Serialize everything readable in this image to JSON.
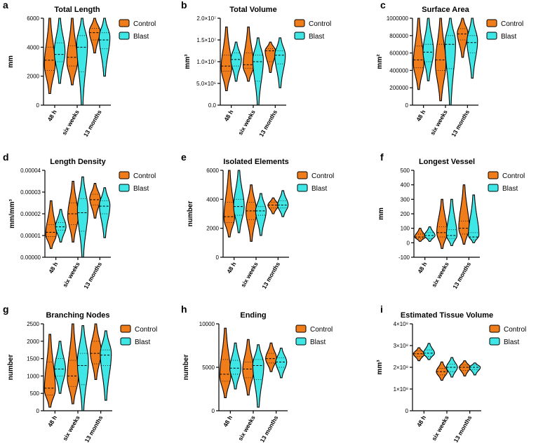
{
  "colors": {
    "control": "#f07d1a",
    "blast": "#3ee6e6",
    "outline": "#000000"
  },
  "legend": [
    "Control",
    "Blast"
  ],
  "categories": [
    "48 h",
    "six weeks",
    "13 months"
  ],
  "chart_data": [
    {
      "type": "violin",
      "letter": "a",
      "title": "Total Length",
      "ylabel": "mm",
      "ylim": [
        0,
        6000
      ],
      "ticks": [
        0,
        2000,
        4000,
        6000
      ],
      "tick_labels": [
        "0",
        "2000",
        "4000",
        "6000"
      ],
      "series": [
        {
          "name": "Control",
          "violins": [
            {
              "min": 800,
              "max": 6000,
              "median": 3100,
              "q1": 2400,
              "q3": 4000,
              "mode": 2800
            },
            {
              "min": 1400,
              "max": 6000,
              "median": 3300,
              "q1": 2700,
              "q3": 4100,
              "mode": 3000
            },
            {
              "min": 3600,
              "max": 6000,
              "median": 5000,
              "q1": 4500,
              "q3": 5300,
              "mode": 5100
            }
          ]
        },
        {
          "name": "Blast",
          "violins": [
            {
              "min": 1500,
              "max": 6000,
              "median": 3500,
              "q1": 3000,
              "q3": 4300,
              "mode": 3700
            },
            {
              "min": 0,
              "max": 6000,
              "median": 4000,
              "q1": 2300,
              "q3": 4800,
              "mode": 4300
            },
            {
              "min": 2000,
              "max": 6000,
              "median": 4500,
              "q1": 3900,
              "q3": 5000,
              "mode": 4700
            }
          ]
        }
      ]
    },
    {
      "type": "violin",
      "letter": "b",
      "title": "Total Volume",
      "ylabel": "mm³",
      "ylim": [
        0,
        20000000
      ],
      "ticks": [
        0,
        5000000,
        10000000,
        15000000,
        20000000
      ],
      "tick_labels": [
        "0.0",
        "5.0×10⁶",
        "1.0×10⁷",
        "1.5×10⁷",
        "2.0×10⁷"
      ],
      "series": [
        {
          "name": "Control",
          "violins": [
            {
              "min": 3300000,
              "max": 18000000,
              "median": 9000000,
              "q1": 7800000,
              "q3": 11500000,
              "mode": 8500000
            },
            {
              "min": 5500000,
              "max": 18000000,
              "median": 9300000,
              "q1": 8500000,
              "q3": 12000000,
              "mode": 9000000
            },
            {
              "min": 7500000,
              "max": 14500000,
              "median": 12500000,
              "q1": 10000000,
              "q3": 13000000,
              "mode": 12500000
            }
          ]
        },
        {
          "name": "Blast",
          "violins": [
            {
              "min": 5500000,
              "max": 14500000,
              "median": 10500000,
              "q1": 9000000,
              "q3": 12000000,
              "mode": 10500000
            },
            {
              "min": 0,
              "max": 15500000,
              "median": 10000000,
              "q1": 5500000,
              "q3": 11500000,
              "mode": 10500000
            },
            {
              "min": 4000000,
              "max": 15500000,
              "median": 11500000,
              "q1": 9500000,
              "q3": 12500000,
              "mode": 11500000
            }
          ]
        }
      ]
    },
    {
      "type": "violin",
      "letter": "c",
      "title": "Surface Area",
      "ylabel": "mm²",
      "ylim": [
        0,
        1000000
      ],
      "ticks": [
        0,
        200000,
        400000,
        600000,
        800000,
        1000000
      ],
      "tick_labels": [
        "0",
        "200000",
        "400000",
        "600000",
        "800000",
        "1000000"
      ],
      "series": [
        {
          "name": "Control",
          "violins": [
            {
              "min": 180000,
              "max": 1000000,
              "median": 520000,
              "q1": 430000,
              "q3": 680000,
              "mode": 480000
            },
            {
              "min": 50000,
              "max": 1000000,
              "median": 520000,
              "q1": 400000,
              "q3": 700000,
              "mode": 480000
            },
            {
              "min": 550000,
              "max": 1000000,
              "median": 820000,
              "q1": 750000,
              "q3": 880000,
              "mode": 830000
            }
          ]
        },
        {
          "name": "Blast",
          "violins": [
            {
              "min": 280000,
              "max": 1000000,
              "median": 610000,
              "q1": 500000,
              "q3": 700000,
              "mode": 620000
            },
            {
              "min": 0,
              "max": 1000000,
              "median": 700000,
              "q1": 420000,
              "q3": 800000,
              "mode": 720000
            },
            {
              "min": 310000,
              "max": 1000000,
              "median": 720000,
              "q1": 600000,
              "q3": 800000,
              "mode": 740000
            }
          ]
        }
      ]
    },
    {
      "type": "violin",
      "letter": "d",
      "title": "Length Density",
      "ylabel": "mm/mm³",
      "ylim": [
        0,
        4e-05
      ],
      "ticks": [
        0,
        1e-05,
        2e-05,
        3e-05,
        4e-05
      ],
      "tick_labels": [
        "0.00000",
        "0.00001",
        "0.00002",
        "0.00003",
        "0.00004"
      ],
      "series": [
        {
          "name": "Control",
          "violins": [
            {
              "min": 4e-06,
              "max": 2.6e-05,
              "median": 1.15e-05,
              "q1": 9.5e-06,
              "q3": 1.5e-05,
              "mode": 1.05e-05
            },
            {
              "min": 7e-06,
              "max": 3.5e-05,
              "median": 2e-05,
              "q1": 1.5e-05,
              "q3": 2.5e-05,
              "mode": 1.9e-05
            },
            {
              "min": 1.8e-05,
              "max": 3.4e-05,
              "median": 2.65e-05,
              "q1": 2.4e-05,
              "q3": 2.9e-05,
              "mode": 2.7e-05
            }
          ]
        },
        {
          "name": "Blast",
          "violins": [
            {
              "min": 7e-06,
              "max": 2.2e-05,
              "median": 1.4e-05,
              "q1": 1.25e-05,
              "q3": 1.6e-05,
              "mode": 1.4e-05
            },
            {
              "min": 0,
              "max": 3.7e-05,
              "median": 2.05e-05,
              "q1": 1.2e-05,
              "q3": 2.7e-05,
              "mode": 2.2e-05
            },
            {
              "min": 9e-06,
              "max": 3.2e-05,
              "median": 2.35e-05,
              "q1": 2e-05,
              "q3": 2.6e-05,
              "mode": 2.4e-05
            }
          ]
        }
      ]
    },
    {
      "type": "violin",
      "letter": "e",
      "title": "Isolated Elements",
      "ylabel": "number",
      "ylim": [
        0,
        6000
      ],
      "ticks": [
        0,
        2000,
        4000,
        6000
      ],
      "tick_labels": [
        "0",
        "2000",
        "4000",
        "6000"
      ],
      "series": [
        {
          "name": "Control",
          "violins": [
            {
              "min": 1400,
              "max": 6000,
              "median": 2800,
              "q1": 2400,
              "q3": 3800,
              "mode": 2700
            },
            {
              "min": 1100,
              "max": 5000,
              "median": 3200,
              "q1": 2600,
              "q3": 3800,
              "mode": 3200
            },
            {
              "min": 3000,
              "max": 4100,
              "median": 3600,
              "q1": 3400,
              "q3": 3800,
              "mode": 3600
            }
          ]
        },
        {
          "name": "Blast",
          "violins": [
            {
              "min": 1700,
              "max": 6000,
              "median": 3500,
              "q1": 2900,
              "q3": 4000,
              "mode": 3500
            },
            {
              "min": 1500,
              "max": 4400,
              "median": 3200,
              "q1": 2900,
              "q3": 3500,
              "mode": 3200
            },
            {
              "min": 2800,
              "max": 4600,
              "median": 3600,
              "q1": 3400,
              "q3": 3900,
              "mode": 3600
            }
          ]
        }
      ]
    },
    {
      "type": "violin",
      "letter": "f",
      "title": "Longest Vessel",
      "ylabel": "mm",
      "ylim": [
        -100,
        500
      ],
      "ticks": [
        -100,
        0,
        100,
        200,
        300,
        400,
        500
      ],
      "tick_labels": [
        "-100",
        "0",
        "100",
        "200",
        "300",
        "400",
        "500"
      ],
      "series": [
        {
          "name": "Control",
          "violins": [
            {
              "min": 10,
              "max": 100,
              "median": 40,
              "q1": 30,
              "q3": 60,
              "mode": 40
            },
            {
              "min": -40,
              "max": 300,
              "median": 70,
              "q1": 40,
              "q3": 110,
              "mode": 70
            },
            {
              "min": -10,
              "max": 400,
              "median": 100,
              "q1": 60,
              "q3": 150,
              "mode": 100
            }
          ]
        },
        {
          "name": "Blast",
          "violins": [
            {
              "min": 10,
              "max": 110,
              "median": 50,
              "q1": 30,
              "q3": 70,
              "mode": 50
            },
            {
              "min": -20,
              "max": 300,
              "median": 50,
              "q1": 30,
              "q3": 90,
              "mode": 50
            },
            {
              "min": 0,
              "max": 330,
              "median": 40,
              "q1": 20,
              "q3": 70,
              "mode": 50
            }
          ]
        }
      ]
    },
    {
      "type": "violin",
      "letter": "g",
      "title": "Branching Nodes",
      "ylabel": "number",
      "ylim": [
        0,
        2500
      ],
      "ticks": [
        0,
        500,
        1000,
        1500,
        2000,
        2500
      ],
      "tick_labels": [
        "0",
        "500",
        "1000",
        "1500",
        "2000",
        "2500"
      ],
      "series": [
        {
          "name": "Control",
          "violins": [
            {
              "min": 100,
              "max": 2200,
              "median": 650,
              "q1": 450,
              "q3": 1400,
              "mode": 600
            },
            {
              "min": 200,
              "max": 2500,
              "median": 1000,
              "q1": 700,
              "q3": 1450,
              "mode": 950
            },
            {
              "min": 900,
              "max": 2500,
              "median": 1650,
              "q1": 1350,
              "q3": 2000,
              "mode": 1700
            }
          ]
        },
        {
          "name": "Blast",
          "violins": [
            {
              "min": 500,
              "max": 2000,
              "median": 1200,
              "q1": 1000,
              "q3": 1500,
              "mode": 1200
            },
            {
              "min": 0,
              "max": 2450,
              "median": 1300,
              "q1": 750,
              "q3": 1650,
              "mode": 1400
            },
            {
              "min": 300,
              "max": 2300,
              "median": 1600,
              "q1": 1300,
              "q3": 1750,
              "mode": 1650
            }
          ]
        }
      ]
    },
    {
      "type": "violin",
      "letter": "h",
      "title": "Ending",
      "ylabel": "number",
      "ylim": [
        0,
        10000
      ],
      "ticks": [
        0,
        5000,
        10000
      ],
      "tick_labels": [
        "0",
        "5000",
        "10000"
      ],
      "series": [
        {
          "name": "Control",
          "violins": [
            {
              "min": 1500,
              "max": 9500,
              "median": 4200,
              "q1": 3400,
              "q3": 5900,
              "mode": 4000
            },
            {
              "min": 1800,
              "max": 8200,
              "median": 4800,
              "q1": 3800,
              "q3": 5600,
              "mode": 4700
            },
            {
              "min": 4500,
              "max": 7800,
              "median": 6000,
              "q1": 5500,
              "q3": 6600,
              "mode": 6000
            }
          ]
        },
        {
          "name": "Blast",
          "violins": [
            {
              "min": 2500,
              "max": 7800,
              "median": 4900,
              "q1": 4200,
              "q3": 5800,
              "mode": 4900
            },
            {
              "min": 400,
              "max": 7600,
              "median": 5200,
              "q1": 3600,
              "q3": 5900,
              "mode": 5300
            },
            {
              "min": 3800,
              "max": 7200,
              "median": 5600,
              "q1": 5000,
              "q3": 6100,
              "mode": 5600
            }
          ]
        }
      ]
    },
    {
      "type": "violin",
      "letter": "i",
      "title": "Estimated Tissue Volume",
      "ylabel": "mm³",
      "ylim": [
        0,
        400000000
      ],
      "ticks": [
        0,
        100000000,
        200000000,
        300000000,
        400000000
      ],
      "tick_labels": [
        "0",
        "1×10⁸",
        "2×10⁸",
        "3×10⁸",
        "4×10⁸"
      ],
      "series": [
        {
          "name": "Control",
          "violins": [
            {
              "min": 230000000,
              "max": 290000000,
              "median": 262000000,
              "q1": 250000000,
              "q3": 275000000,
              "mode": 262000000
            },
            {
              "min": 140000000,
              "max": 225000000,
              "median": 180000000,
              "q1": 165000000,
              "q3": 195000000,
              "mode": 180000000
            },
            {
              "min": 160000000,
              "max": 230000000,
              "median": 200000000,
              "q1": 185000000,
              "q3": 210000000,
              "mode": 200000000
            }
          ]
        },
        {
          "name": "Blast",
          "violins": [
            {
              "min": 235000000,
              "max": 310000000,
              "median": 265000000,
              "q1": 250000000,
              "q3": 280000000,
              "mode": 265000000
            },
            {
              "min": 155000000,
              "max": 245000000,
              "median": 200000000,
              "q1": 180000000,
              "q3": 215000000,
              "mode": 200000000
            },
            {
              "min": 165000000,
              "max": 220000000,
              "median": 200000000,
              "q1": 190000000,
              "q3": 210000000,
              "mode": 200000000
            }
          ]
        }
      ]
    }
  ]
}
